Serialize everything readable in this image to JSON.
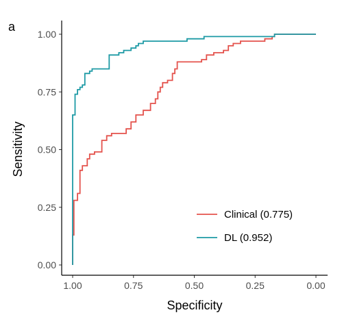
{
  "panel_label": "a",
  "chart_data": {
    "type": "line",
    "title": "",
    "xlabel": "Specificity",
    "ylabel": "Sensitivity",
    "x_reversed": true,
    "xlim": [
      1.0,
      0.0
    ],
    "ylim": [
      0.0,
      1.0
    ],
    "x_ticks": [
      1.0,
      0.75,
      0.5,
      0.25,
      0.0
    ],
    "x_tick_labels": [
      "1.00",
      "0.75",
      "0.50",
      "0.25",
      "0.00"
    ],
    "y_ticks": [
      0.0,
      0.25,
      0.5,
      0.75,
      1.0
    ],
    "y_tick_labels": [
      "0.00",
      "0.25",
      "0.50",
      "0.75",
      "1.00"
    ],
    "grid": false,
    "legend_position": "bottom-right",
    "series": [
      {
        "name": "Clinical (0.775)",
        "color": "#E4524C",
        "points": [
          [
            1.0,
            0.0
          ],
          [
            1.0,
            0.13
          ],
          [
            0.995,
            0.13
          ],
          [
            0.995,
            0.28
          ],
          [
            0.98,
            0.28
          ],
          [
            0.98,
            0.31
          ],
          [
            0.97,
            0.31
          ],
          [
            0.97,
            0.41
          ],
          [
            0.96,
            0.41
          ],
          [
            0.96,
            0.43
          ],
          [
            0.94,
            0.43
          ],
          [
            0.94,
            0.46
          ],
          [
            0.93,
            0.46
          ],
          [
            0.93,
            0.48
          ],
          [
            0.91,
            0.48
          ],
          [
            0.91,
            0.49
          ],
          [
            0.88,
            0.49
          ],
          [
            0.88,
            0.54
          ],
          [
            0.86,
            0.54
          ],
          [
            0.86,
            0.56
          ],
          [
            0.84,
            0.56
          ],
          [
            0.84,
            0.57
          ],
          [
            0.78,
            0.57
          ],
          [
            0.78,
            0.59
          ],
          [
            0.76,
            0.59
          ],
          [
            0.76,
            0.62
          ],
          [
            0.74,
            0.62
          ],
          [
            0.74,
            0.65
          ],
          [
            0.71,
            0.65
          ],
          [
            0.71,
            0.67
          ],
          [
            0.68,
            0.67
          ],
          [
            0.68,
            0.7
          ],
          [
            0.66,
            0.7
          ],
          [
            0.66,
            0.72
          ],
          [
            0.65,
            0.72
          ],
          [
            0.65,
            0.75
          ],
          [
            0.64,
            0.75
          ],
          [
            0.64,
            0.77
          ],
          [
            0.63,
            0.77
          ],
          [
            0.63,
            0.79
          ],
          [
            0.61,
            0.79
          ],
          [
            0.61,
            0.8
          ],
          [
            0.59,
            0.8
          ],
          [
            0.59,
            0.83
          ],
          [
            0.58,
            0.83
          ],
          [
            0.58,
            0.85
          ],
          [
            0.57,
            0.85
          ],
          [
            0.57,
            0.88
          ],
          [
            0.47,
            0.88
          ],
          [
            0.47,
            0.89
          ],
          [
            0.45,
            0.89
          ],
          [
            0.45,
            0.91
          ],
          [
            0.42,
            0.91
          ],
          [
            0.42,
            0.92
          ],
          [
            0.38,
            0.92
          ],
          [
            0.38,
            0.93
          ],
          [
            0.36,
            0.93
          ],
          [
            0.36,
            0.95
          ],
          [
            0.34,
            0.95
          ],
          [
            0.34,
            0.96
          ],
          [
            0.31,
            0.96
          ],
          [
            0.31,
            0.97
          ],
          [
            0.21,
            0.97
          ],
          [
            0.21,
            0.98
          ],
          [
            0.18,
            0.98
          ],
          [
            0.18,
            0.99
          ],
          [
            0.17,
            0.99
          ],
          [
            0.17,
            1.0
          ],
          [
            0.0,
            1.0
          ]
        ]
      },
      {
        "name": "DL (0.952)",
        "color": "#1D9AA5",
        "points": [
          [
            1.0,
            0.0
          ],
          [
            1.0,
            0.65
          ],
          [
            0.99,
            0.65
          ],
          [
            0.99,
            0.74
          ],
          [
            0.98,
            0.74
          ],
          [
            0.98,
            0.76
          ],
          [
            0.97,
            0.76
          ],
          [
            0.97,
            0.77
          ],
          [
            0.96,
            0.77
          ],
          [
            0.96,
            0.78
          ],
          [
            0.95,
            0.78
          ],
          [
            0.95,
            0.83
          ],
          [
            0.93,
            0.83
          ],
          [
            0.93,
            0.84
          ],
          [
            0.92,
            0.84
          ],
          [
            0.92,
            0.85
          ],
          [
            0.85,
            0.85
          ],
          [
            0.85,
            0.91
          ],
          [
            0.81,
            0.91
          ],
          [
            0.81,
            0.92
          ],
          [
            0.79,
            0.92
          ],
          [
            0.79,
            0.93
          ],
          [
            0.76,
            0.93
          ],
          [
            0.76,
            0.94
          ],
          [
            0.74,
            0.94
          ],
          [
            0.74,
            0.95
          ],
          [
            0.73,
            0.95
          ],
          [
            0.73,
            0.96
          ],
          [
            0.71,
            0.96
          ],
          [
            0.71,
            0.97
          ],
          [
            0.53,
            0.97
          ],
          [
            0.53,
            0.98
          ],
          [
            0.46,
            0.98
          ],
          [
            0.46,
            0.99
          ],
          [
            0.17,
            0.99
          ],
          [
            0.17,
            1.0
          ],
          [
            0.0,
            1.0
          ]
        ]
      }
    ]
  }
}
